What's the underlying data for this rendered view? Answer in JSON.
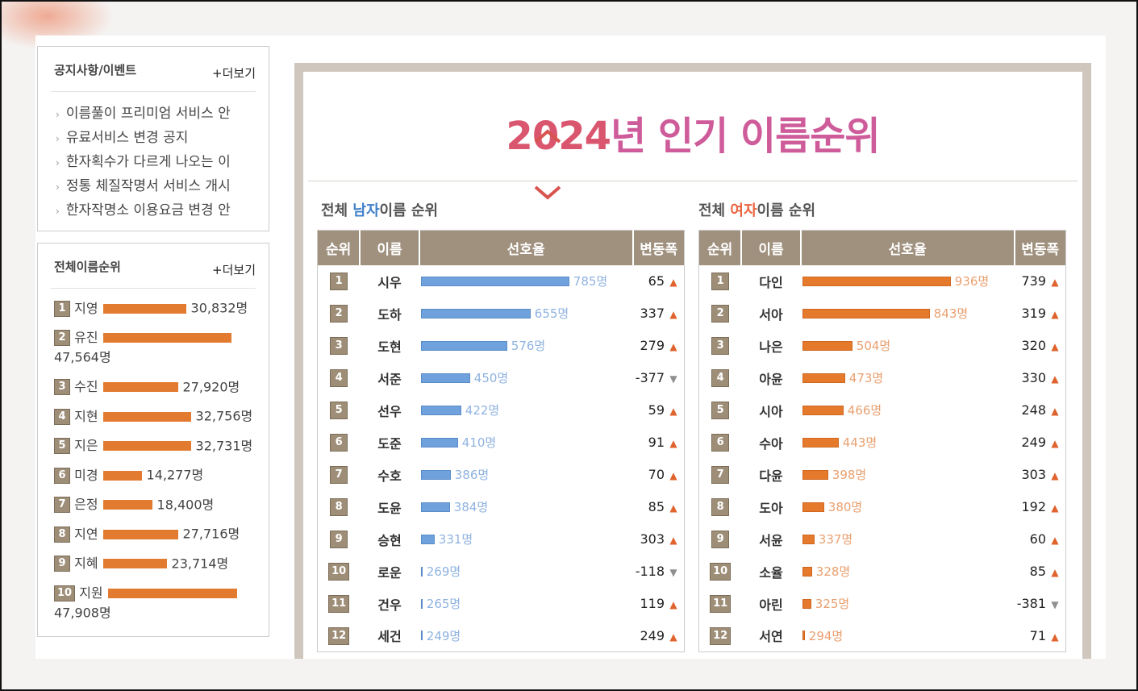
{
  "notice": {
    "title": "공지사항/이벤트",
    "more": "+더보기",
    "items": [
      "이름풀이 프리미엄 서비스 안",
      "유료서비스 변경 공지",
      "한자획수가 다르게 나오는 이",
      "정통 체질작명서 서비스 개시",
      "한자작명소 이용요금 변경 안"
    ]
  },
  "overall": {
    "title": "전체이름순위",
    "more": "+더보기",
    "items": [
      {
        "rank": "1",
        "name": "지영",
        "count": "30,832명",
        "value": 30832
      },
      {
        "rank": "2",
        "name": "유진",
        "count": "47,564명",
        "value": 47564
      },
      {
        "rank": "3",
        "name": "수진",
        "count": "27,920명",
        "value": 27920
      },
      {
        "rank": "4",
        "name": "지현",
        "count": "32,756명",
        "value": 32756
      },
      {
        "rank": "5",
        "name": "지은",
        "count": "32,731명",
        "value": 32731
      },
      {
        "rank": "6",
        "name": "미경",
        "count": "14,277명",
        "value": 14277
      },
      {
        "rank": "7",
        "name": "은정",
        "count": "18,400명",
        "value": 18400
      },
      {
        "rank": "8",
        "name": "지연",
        "count": "27,716명",
        "value": 27716
      },
      {
        "rank": "9",
        "name": "지혜",
        "count": "23,714명",
        "value": 23714
      },
      {
        "rank": "10",
        "name": "지원",
        "count": "47,908명",
        "value": 47908
      }
    ]
  },
  "heading": {
    "year": "2024",
    "rest": "년 인기 이름순위"
  },
  "male": {
    "title_prefix": "전체 ",
    "title_highlight": "남자",
    "title_suffix": "이름 순위",
    "columns": [
      "순위",
      "이름",
      "선호율",
      "변동폭"
    ],
    "rows": [
      {
        "rank": "1",
        "name": "시우",
        "pref": "785명",
        "value": 785,
        "change": "65",
        "dir": "up"
      },
      {
        "rank": "2",
        "name": "도하",
        "pref": "655명",
        "value": 655,
        "change": "337",
        "dir": "up"
      },
      {
        "rank": "3",
        "name": "도현",
        "pref": "576명",
        "value": 576,
        "change": "279",
        "dir": "up"
      },
      {
        "rank": "4",
        "name": "서준",
        "pref": "450명",
        "value": 450,
        "change": "-377",
        "dir": "down"
      },
      {
        "rank": "5",
        "name": "선우",
        "pref": "422명",
        "value": 422,
        "change": "59",
        "dir": "up"
      },
      {
        "rank": "6",
        "name": "도준",
        "pref": "410명",
        "value": 410,
        "change": "91",
        "dir": "up"
      },
      {
        "rank": "7",
        "name": "수호",
        "pref": "386명",
        "value": 386,
        "change": "70",
        "dir": "up"
      },
      {
        "rank": "8",
        "name": "도윤",
        "pref": "384명",
        "value": 384,
        "change": "85",
        "dir": "up"
      },
      {
        "rank": "9",
        "name": "승현",
        "pref": "331명",
        "value": 331,
        "change": "303",
        "dir": "up"
      },
      {
        "rank": "10",
        "name": "로운",
        "pref": "269명",
        "value": 269,
        "change": "-118",
        "dir": "down"
      },
      {
        "rank": "11",
        "name": "건우",
        "pref": "265명",
        "value": 265,
        "change": "119",
        "dir": "up"
      },
      {
        "rank": "12",
        "name": "세건",
        "pref": "249명",
        "value": 249,
        "change": "249",
        "dir": "up"
      }
    ]
  },
  "female": {
    "title_prefix": "전체 ",
    "title_highlight": "여자",
    "title_suffix": "이름 순위",
    "columns": [
      "순위",
      "이름",
      "선호율",
      "변동폭"
    ],
    "rows": [
      {
        "rank": "1",
        "name": "다인",
        "pref": "936명",
        "value": 936,
        "change": "739",
        "dir": "up"
      },
      {
        "rank": "2",
        "name": "서아",
        "pref": "843명",
        "value": 843,
        "change": "319",
        "dir": "up"
      },
      {
        "rank": "3",
        "name": "나은",
        "pref": "504명",
        "value": 504,
        "change": "320",
        "dir": "up"
      },
      {
        "rank": "4",
        "name": "아윤",
        "pref": "473명",
        "value": 473,
        "change": "330",
        "dir": "up"
      },
      {
        "rank": "5",
        "name": "시아",
        "pref": "466명",
        "value": 466,
        "change": "248",
        "dir": "up"
      },
      {
        "rank": "6",
        "name": "수아",
        "pref": "443명",
        "value": 443,
        "change": "249",
        "dir": "up"
      },
      {
        "rank": "7",
        "name": "다윤",
        "pref": "398명",
        "value": 398,
        "change": "303",
        "dir": "up"
      },
      {
        "rank": "8",
        "name": "도아",
        "pref": "380명",
        "value": 380,
        "change": "192",
        "dir": "up"
      },
      {
        "rank": "9",
        "name": "서윤",
        "pref": "337명",
        "value": 337,
        "change": "60",
        "dir": "up"
      },
      {
        "rank": "10",
        "name": "소율",
        "pref": "328명",
        "value": 328,
        "change": "85",
        "dir": "up"
      },
      {
        "rank": "11",
        "name": "아린",
        "pref": "325명",
        "value": 325,
        "change": "-381",
        "dir": "down"
      },
      {
        "rank": "12",
        "name": "서연",
        "pref": "294명",
        "value": 294,
        "change": "71",
        "dir": "up"
      }
    ]
  },
  "colors": {
    "male_bar": "#6fa2dd",
    "female_bar": "#e57a2c",
    "rank_badge": "#9e8e78",
    "arrow_up": "#e0622c",
    "arrow_down": "#8f8f8f"
  },
  "icons": {
    "up": "arrow-up-icon",
    "down": "arrow-down-icon"
  }
}
